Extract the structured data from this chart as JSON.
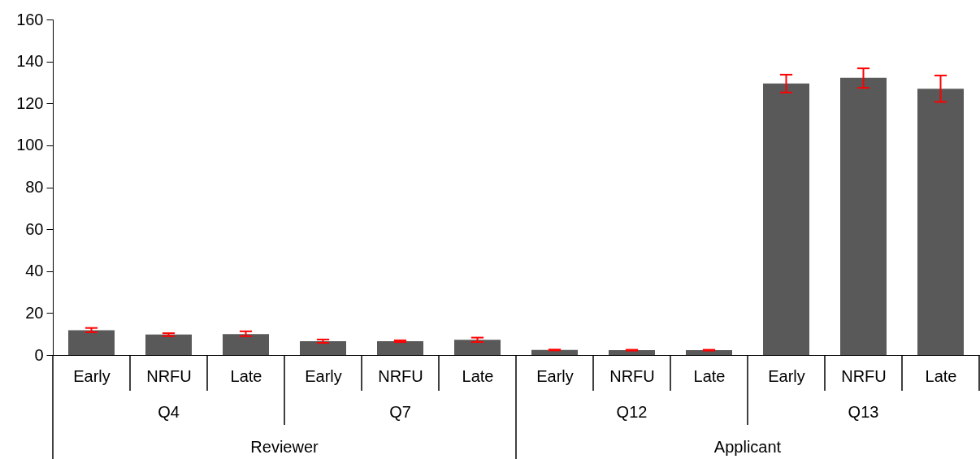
{
  "chart_data": {
    "type": "bar",
    "categories": [
      "Early",
      "NRFU",
      "Late",
      "Early",
      "NRFU",
      "Late",
      "Early",
      "NRFU",
      "Late",
      "Early",
      "NRFU",
      "Late"
    ],
    "values": [
      11.8,
      9.8,
      10.0,
      6.6,
      6.6,
      7.3,
      2.4,
      2.3,
      2.3,
      129.5,
      132.2,
      127.0
    ],
    "errors": [
      [
        10.9,
        12.9
      ],
      [
        9.0,
        10.4
      ],
      [
        9.0,
        11.3
      ],
      [
        5.8,
        7.4
      ],
      [
        6.2,
        7.0
      ],
      [
        6.2,
        8.3
      ],
      [
        2.2,
        2.6
      ],
      [
        2.1,
        2.5
      ],
      [
        2.1,
        2.5
      ],
      [
        125.2,
        133.7
      ],
      [
        127.4,
        136.7
      ],
      [
        120.7,
        133.3
      ]
    ],
    "color": "#595959",
    "ylim": [
      0,
      160
    ],
    "yticks": [
      0,
      20,
      40,
      60,
      80,
      100,
      120,
      140,
      160
    ],
    "grid": false,
    "annotations": [
      "Q4",
      "Q7",
      "Q12",
      "Q13",
      "Reviewer",
      "Applicant"
    ]
  }
}
